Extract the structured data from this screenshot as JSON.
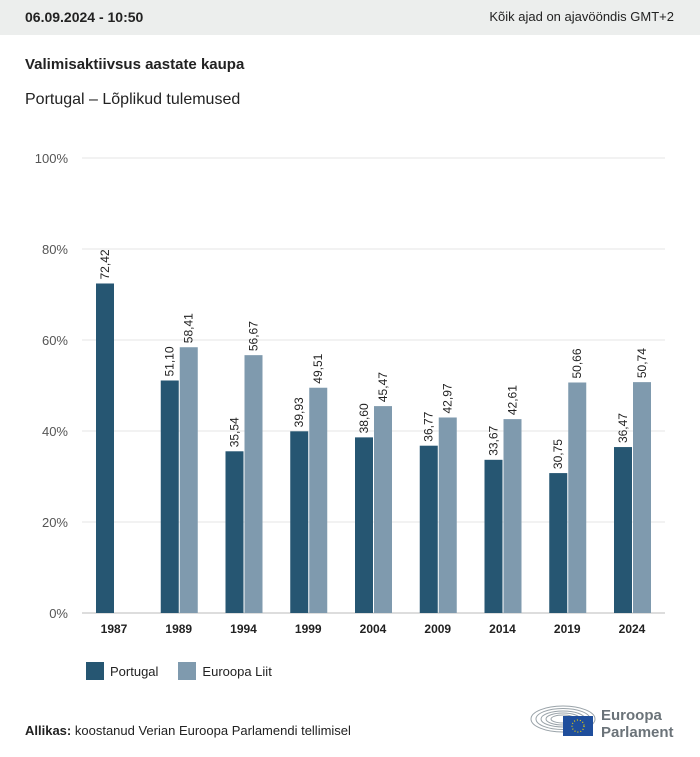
{
  "header": {
    "date": "06.09.2024 - 10:50",
    "timezone": "Kõik ajad on ajavööndis GMT+2"
  },
  "title": "Valimisaktiivsus aastate kaupa",
  "subtitle": "Portugal – Lõplikud tulemused",
  "chart_data": {
    "type": "bar",
    "categories": [
      "1987",
      "1989",
      "1994",
      "1999",
      "2004",
      "2009",
      "2014",
      "2019",
      "2024"
    ],
    "series": [
      {
        "name": "Portugal",
        "color": "#265672",
        "values": [
          72.42,
          51.1,
          35.54,
          39.93,
          38.6,
          36.77,
          33.67,
          30.75,
          36.47
        ],
        "labels": [
          "72,42",
          "51,10",
          "35,54",
          "39,93",
          "38,60",
          "36,77",
          "33,67",
          "30,75",
          "36,47"
        ]
      },
      {
        "name": "Euroopa Liit",
        "color": "#7f9aae",
        "values": [
          null,
          58.41,
          56.67,
          49.51,
          45.47,
          42.97,
          42.61,
          50.66,
          50.74
        ],
        "labels": [
          "",
          "58,41",
          "56,67",
          "49,51",
          "45,47",
          "42,97",
          "42,61",
          "50,66",
          "50,74"
        ]
      }
    ],
    "ylim": [
      0,
      100
    ],
    "yticks": [
      "0%",
      "20%",
      "40%",
      "60%",
      "80%",
      "100%"
    ],
    "grid": true,
    "legend": "bottom-left"
  },
  "legend": {
    "items": [
      "Portugal",
      "Euroopa Liit"
    ]
  },
  "source": {
    "label": "Allikas:",
    "text": "koostanud Verian Euroopa Parlamendi tellimisel"
  },
  "logo": {
    "line1": "Euroopa",
    "line2": "Parlament"
  }
}
